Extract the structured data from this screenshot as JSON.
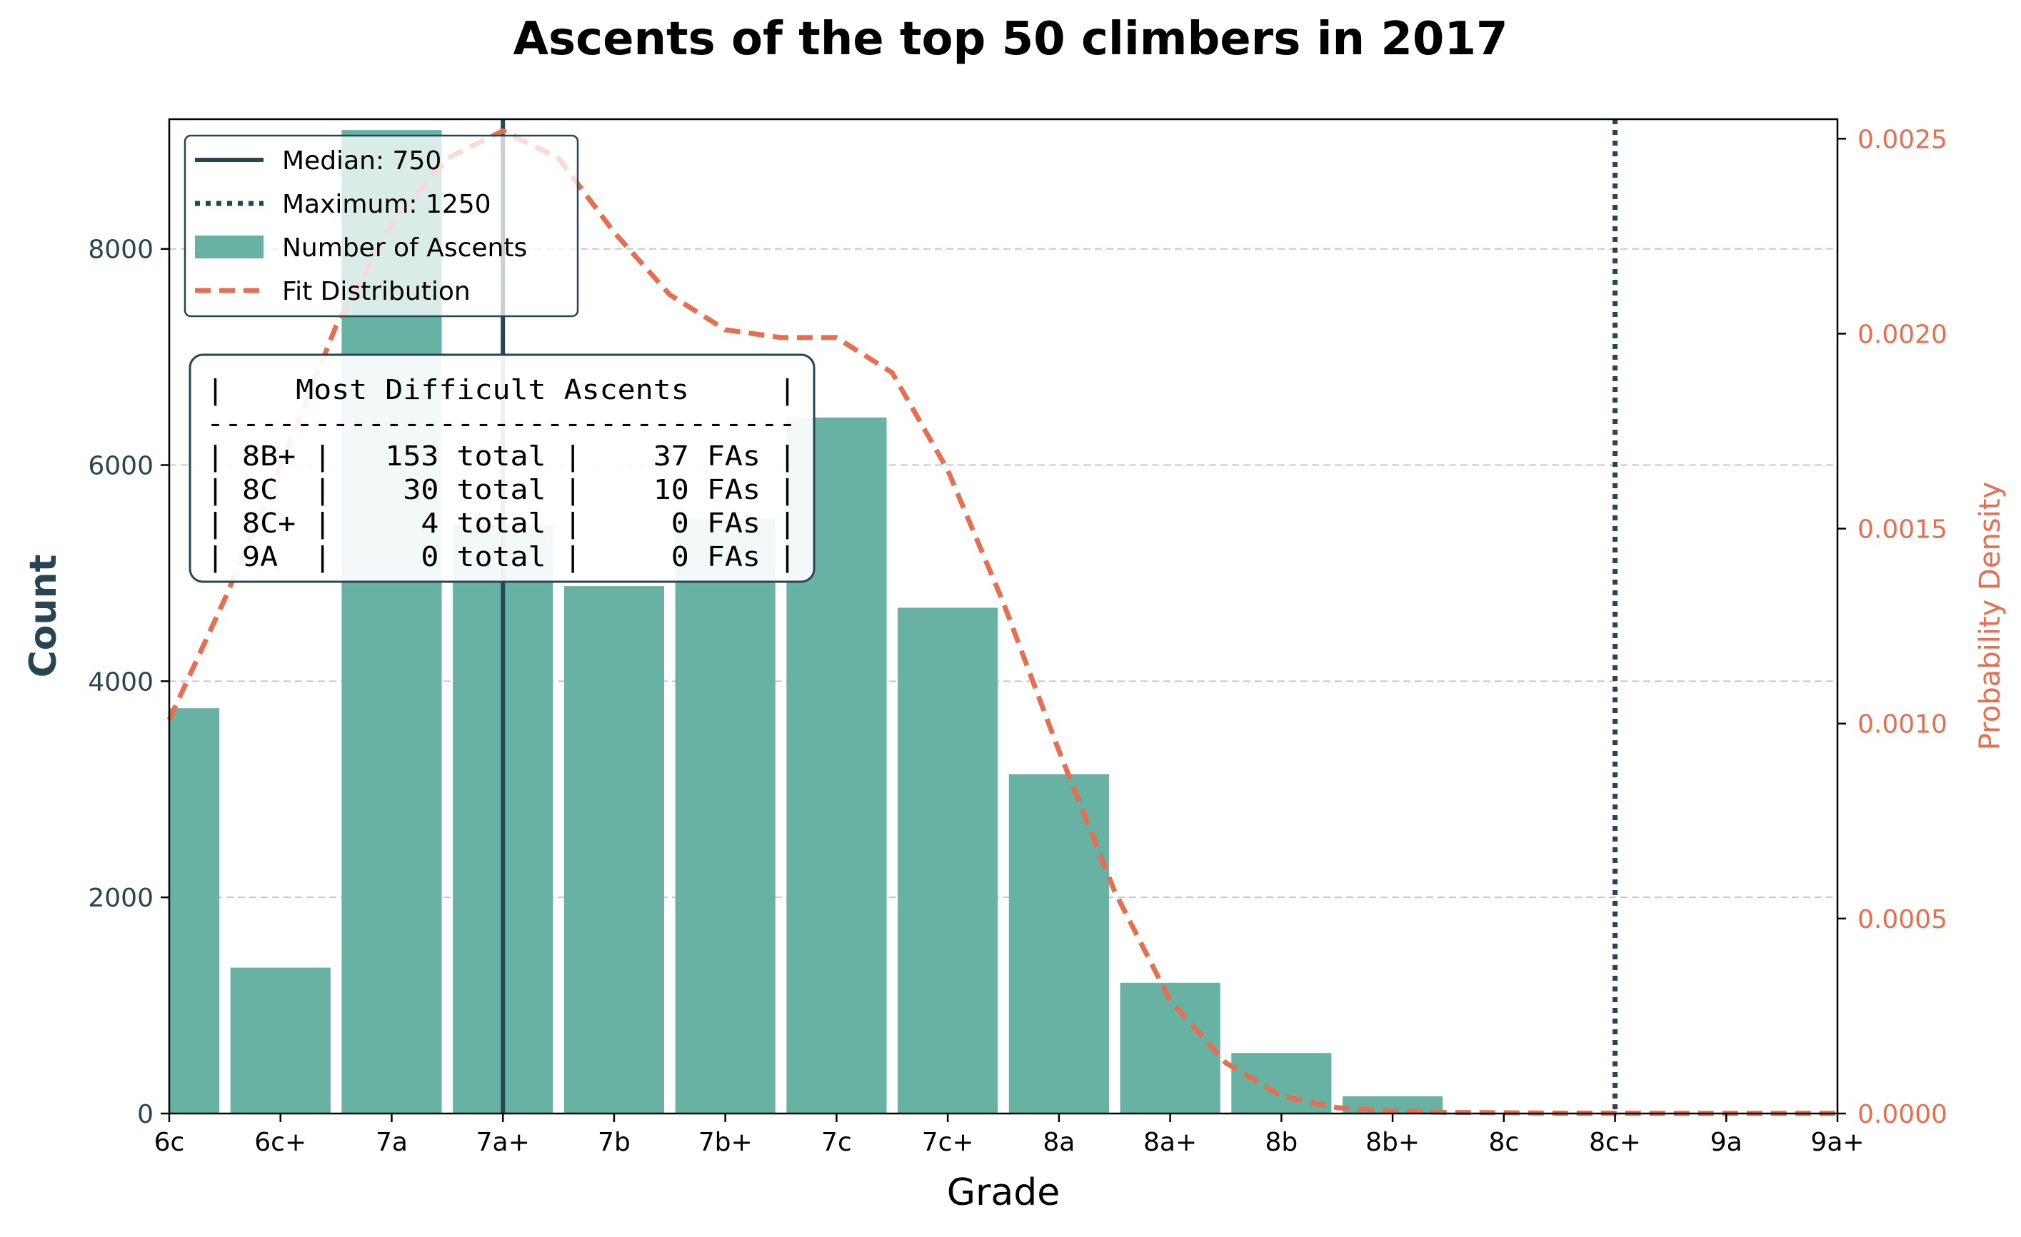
{
  "chart_data": {
    "type": "bar",
    "title": "Ascents of the top 50 climbers in 2017",
    "xlabel": "Grade",
    "ylabel": "Count",
    "y2label": "Probability Density",
    "categories": [
      "6c",
      "6c+",
      "7a",
      "7a+",
      "7b",
      "7b+",
      "7c",
      "7c+",
      "8a",
      "8a+",
      "8b",
      "8b+",
      "8c",
      "8c+",
      "9a",
      "9a+"
    ],
    "ylim": [
      0,
      9200
    ],
    "y_ticks": [
      0,
      2000,
      4000,
      6000,
      8000
    ],
    "y2lim": [
      0,
      0.00255
    ],
    "y2_ticks": [
      "0.0000",
      "0.0005",
      "0.0010",
      "0.0015",
      "0.0020",
      "0.0025"
    ],
    "grid": "horizontal dashed",
    "legend_position": "top-left",
    "series": [
      {
        "name": "Number of Ascents",
        "color": "#67b2a2",
        "values": [
          3750,
          1350,
          9100,
          5450,
          4880,
          5500,
          6440,
          4680,
          3140,
          1210,
          560,
          160,
          0,
          0,
          0,
          0
        ]
      },
      {
        "name": "Fit Distribution",
        "type": "line",
        "color": "#e76f51",
        "x": [
          0,
          0.5,
          1,
          1.5,
          2,
          2.5,
          3,
          3.5,
          4,
          4.5,
          5,
          5.5,
          6,
          6.5,
          7,
          7.5,
          8,
          8.5,
          9,
          9.5,
          10,
          10.5,
          11,
          11.5,
          12,
          12.5,
          13,
          13.5,
          14,
          14.5,
          15
        ],
        "values": [
          0.00101,
          0.00132,
          0.00166,
          0.00202,
          0.00228,
          0.00245,
          0.00252,
          0.00245,
          0.00226,
          0.0021,
          0.00201,
          0.00199,
          0.00199,
          0.0019,
          0.00165,
          0.00131,
          0.00093,
          0.00057,
          0.00029,
          0.00013,
          4.5e-05,
          1.5e-05,
          6e-06,
          3e-06,
          2e-06,
          1e-06,
          1e-06,
          5e-07,
          5e-07,
          5e-07,
          5e-07
        ]
      }
    ],
    "reference_lines": [
      {
        "name": "Median: 750",
        "style": "solid",
        "color": "#264653",
        "at_category": "7a+"
      },
      {
        "name": "Maximum: 1250",
        "style": "dotted",
        "color": "#264653",
        "at_category": "8c+"
      }
    ],
    "annotation": {
      "lines": [
        "|    Most Difficult Ascents     |",
        "---------------------------------",
        "| 8B+ |   153 total |    37 FAs |",
        "| 8C  |    30 total |    10 FAs |",
        "| 8C+ |     4 total |     0 FAs |",
        "| 9A  |     0 total |     0 FAs |"
      ]
    }
  },
  "colors": {
    "axis_dark": "#264653",
    "accent": "#e76f51",
    "bar": "#67b2a2"
  }
}
